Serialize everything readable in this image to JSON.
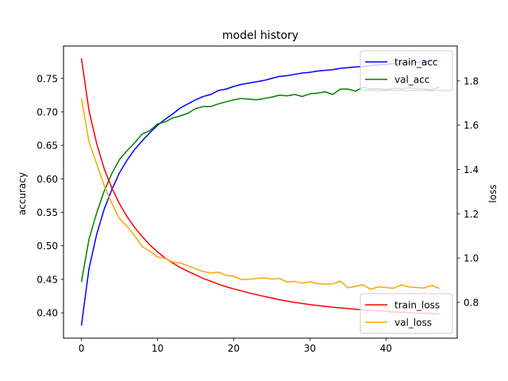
{
  "chart_data": {
    "type": "line",
    "title": "model history",
    "xlabel": "",
    "ylabel_left": "accuracy",
    "ylabel_right": "loss",
    "x_ticks": [
      0,
      10,
      20,
      30,
      40
    ],
    "xlim": [
      -2.35,
      49.35
    ],
    "ylim_left": [
      0.3622,
      0.7983
    ],
    "ylim_right": [
      0.6386,
      1.9572
    ],
    "y_ticks_left": [
      0.4,
      0.45,
      0.5,
      0.55,
      0.6,
      0.65,
      0.7,
      0.75
    ],
    "y_ticks_right": [
      0.8,
      1.0,
      1.2,
      1.4,
      1.6,
      1.8
    ],
    "y_tick_labels_left": [
      "0.40",
      "0.45",
      "0.50",
      "0.55",
      "0.60",
      "0.65",
      "0.70",
      "0.75"
    ],
    "y_tick_labels_right": [
      "0.8",
      "1.0",
      "1.2",
      "1.4",
      "1.6",
      "1.8"
    ],
    "x": [
      0,
      1,
      2,
      3,
      4,
      5,
      6,
      7,
      8,
      9,
      10,
      11,
      12,
      13,
      14,
      15,
      16,
      17,
      18,
      19,
      20,
      21,
      22,
      23,
      24,
      25,
      26,
      27,
      28,
      29,
      30,
      31,
      32,
      33,
      34,
      35,
      36,
      37,
      38,
      39,
      40,
      41,
      42,
      43,
      44,
      45,
      46,
      47
    ],
    "series_left": [
      {
        "name": "train_acc",
        "color": "#0000ff",
        "values": [
          0.381,
          0.466,
          0.517,
          0.555,
          0.584,
          0.609,
          0.628,
          0.644,
          0.657,
          0.669,
          0.68,
          0.689,
          0.697,
          0.706,
          0.712,
          0.718,
          0.723,
          0.726,
          0.732,
          0.734,
          0.738,
          0.741,
          0.743,
          0.745,
          0.747,
          0.75,
          0.753,
          0.754,
          0.756,
          0.758,
          0.759,
          0.761,
          0.762,
          0.763,
          0.765,
          0.766,
          0.767,
          0.768,
          0.769,
          0.77,
          0.771,
          0.772,
          0.773,
          0.773,
          0.774,
          0.775,
          0.776,
          0.776
        ]
      },
      {
        "name": "val_acc",
        "color": "#008000",
        "values": [
          0.446,
          0.51,
          0.549,
          0.582,
          0.608,
          0.629,
          0.642,
          0.654,
          0.667,
          0.672,
          0.682,
          0.685,
          0.691,
          0.694,
          0.698,
          0.705,
          0.708,
          0.708,
          0.712,
          0.715,
          0.718,
          0.72,
          0.719,
          0.718,
          0.72,
          0.722,
          0.725,
          0.724,
          0.726,
          0.723,
          0.727,
          0.728,
          0.73,
          0.726,
          0.734,
          0.734,
          0.731,
          0.737,
          0.734,
          0.735,
          0.733,
          0.735,
          0.734,
          0.736,
          0.735,
          0.734,
          0.733,
          0.737
        ]
      }
    ],
    "series_right": [
      {
        "name": "train_loss",
        "color": "#ff0000",
        "values": [
          1.902,
          1.665,
          1.518,
          1.403,
          1.316,
          1.245,
          1.187,
          1.138,
          1.097,
          1.059,
          1.028,
          1.0,
          0.978,
          0.957,
          0.94,
          0.924,
          0.908,
          0.896,
          0.882,
          0.871,
          0.861,
          0.852,
          0.843,
          0.835,
          0.827,
          0.82,
          0.812,
          0.806,
          0.8,
          0.795,
          0.79,
          0.786,
          0.782,
          0.778,
          0.775,
          0.772,
          0.769,
          0.766,
          0.764,
          0.762,
          0.759,
          0.757,
          0.755,
          0.754,
          0.752,
          0.751,
          0.749,
          0.748
        ]
      },
      {
        "name": "val_loss",
        "color": "#ffa500",
        "values": [
          1.721,
          1.524,
          1.426,
          1.327,
          1.247,
          1.178,
          1.143,
          1.101,
          1.051,
          1.031,
          1.005,
          0.999,
          0.982,
          0.978,
          0.965,
          0.952,
          0.939,
          0.933,
          0.936,
          0.922,
          0.918,
          0.903,
          0.904,
          0.908,
          0.911,
          0.905,
          0.908,
          0.892,
          0.895,
          0.886,
          0.893,
          0.885,
          0.882,
          0.884,
          0.896,
          0.866,
          0.873,
          0.88,
          0.859,
          0.87,
          0.867,
          0.864,
          0.879,
          0.87,
          0.867,
          0.865,
          0.877,
          0.863
        ]
      }
    ],
    "legends": [
      {
        "placement": "upper-right",
        "entries": [
          "train_acc",
          "val_acc"
        ]
      },
      {
        "placement": "lower-right",
        "entries": [
          "train_loss",
          "val_loss"
        ]
      }
    ],
    "grid": false
  }
}
